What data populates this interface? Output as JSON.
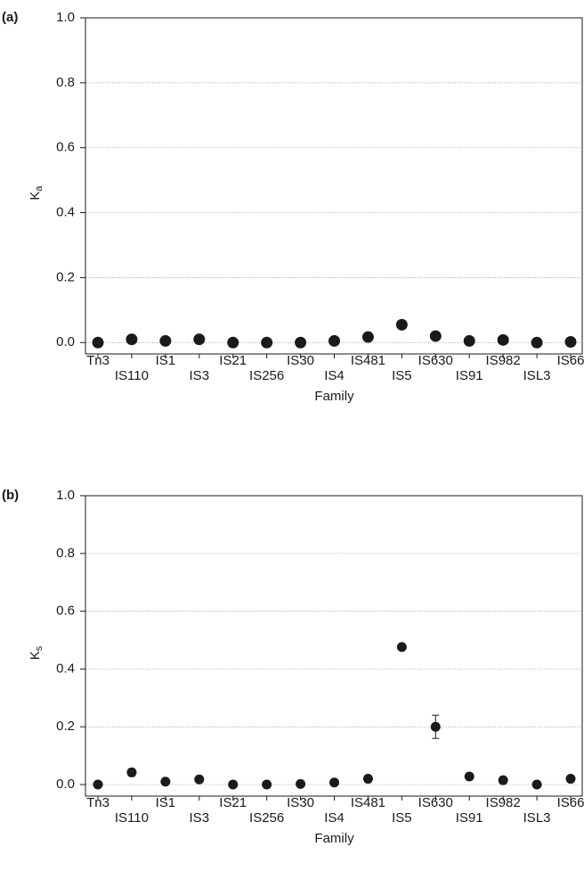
{
  "chart_data": [
    {
      "type": "scatter",
      "panel_label": "(a)",
      "x_label": "Family",
      "y_label": {
        "text": "K",
        "subscript": "a"
      },
      "categories": [
        "Tn3",
        "IS110",
        "IS1",
        "IS3",
        "IS21",
        "IS256",
        "IS30",
        "IS4",
        "IS481",
        "IS5",
        "IS630",
        "IS91",
        "IS982",
        "ISL3",
        "IS66"
      ],
      "values": [
        0.0,
        0.01,
        0.005,
        0.01,
        0.0,
        0.0,
        0.0,
        0.005,
        0.017,
        0.055,
        0.02,
        0.005,
        0.008,
        0.0,
        0.002
      ],
      "color": "#1a1a1a",
      "ylim": [
        -0.035,
        1.0
      ],
      "yticks": [
        {
          "value": 0,
          "label": "0.0"
        },
        0.2,
        0.4,
        0.6,
        0.8,
        {
          "value": 1,
          "label": "1.0"
        }
      ],
      "grid": true
    },
    {
      "type": "scatter",
      "panel_label": "(b)",
      "x_label": "Family",
      "y_label": {
        "text": "K",
        "subscript": "s"
      },
      "categories": [
        "Tn3",
        "IS110",
        "IS1",
        "IS3",
        "IS21",
        "IS256",
        "IS30",
        "IS4",
        "IS481",
        "IS5",
        "IS630",
        "IS91",
        "IS982",
        "ISL3",
        "IS66"
      ],
      "values": [
        0.0,
        0.042,
        0.01,
        0.018,
        0.0,
        0.0,
        0.002,
        0.007,
        0.02,
        0.476,
        0.2,
        0.028,
        0.015,
        0.0,
        0.02
      ],
      "errors": [
        null,
        0.012,
        null,
        null,
        null,
        null,
        null,
        null,
        null,
        0.01,
        0.04,
        null,
        null,
        null,
        null
      ],
      "color": "#1a1a1a",
      "ylim": [
        -0.04,
        1.0
      ],
      "yticks": [
        {
          "value": 0,
          "label": "0.0"
        },
        0.2,
        0.4,
        0.6,
        0.8,
        {
          "value": 1,
          "label": "1.0"
        }
      ],
      "grid": true
    }
  ]
}
